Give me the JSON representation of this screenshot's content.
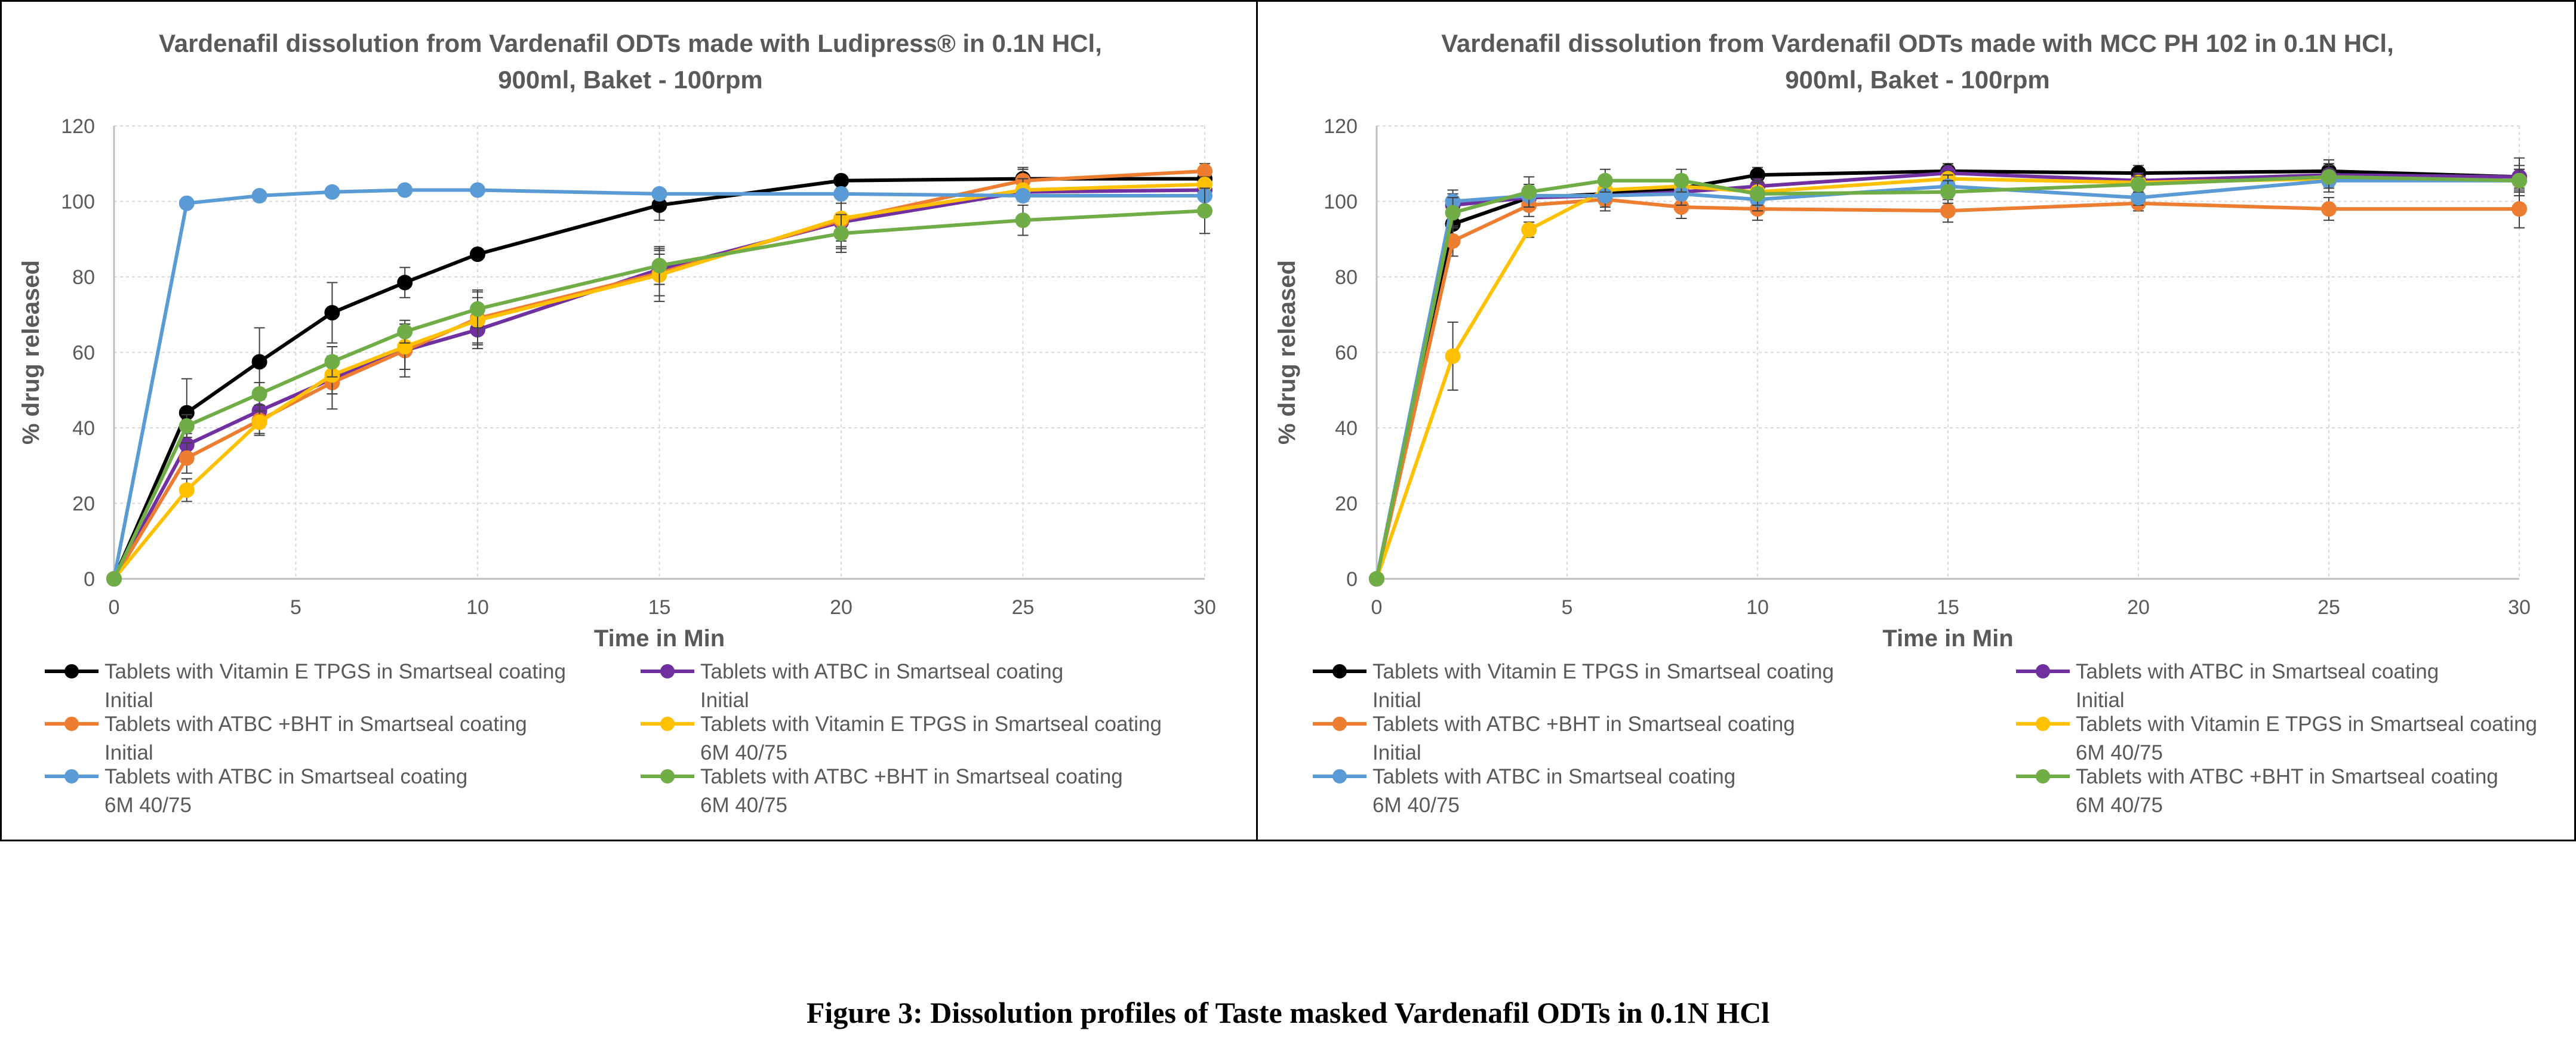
{
  "caption": "Figure 3: Dissolution profiles of Taste masked Vardenafil ODTs in 0.1N HCl",
  "chart_data": [
    {
      "type": "line",
      "title_line1": "Vardenafil dissolution from Vardenafil ODTs made with Ludipress® in 0.1N HCl,",
      "title_line2": "900ml, Baket - 100rpm",
      "xlabel": "Time in Min",
      "ylabel": "% drug released",
      "xlim": [
        0,
        30
      ],
      "ylim": [
        0,
        120
      ],
      "xticks": [
        0,
        5,
        10,
        15,
        20,
        25,
        30
      ],
      "yticks": [
        0,
        20,
        40,
        60,
        80,
        100,
        120
      ],
      "grid": true,
      "legend_position": "bottom",
      "x": [
        0,
        2,
        4,
        6,
        8,
        10,
        15,
        20,
        25,
        30
      ],
      "series": [
        {
          "name": "Tablets with Vitamin E TPGS in Smartseal coating",
          "name2": "Initial",
          "color": "#000000",
          "values": [
            0,
            44,
            57.5,
            70.5,
            78.5,
            86,
            99,
            105.5,
            106,
            106
          ],
          "errors": [
            0,
            9,
            9,
            8,
            4,
            1,
            4,
            1,
            3,
            2
          ]
        },
        {
          "name": "Tablets with ATBC in Smartseal coating",
          "name2": "Initial",
          "color": "#7030A0",
          "values": [
            0,
            35.5,
            44.5,
            53,
            60.5,
            66,
            82,
            94.5,
            102.5,
            103
          ],
          "errors": [
            0,
            3,
            3,
            4,
            5,
            5,
            4,
            5,
            2,
            2
          ]
        },
        {
          "name": "Tablets with ATBC +BHT in Smartseal coating",
          "name2": "Initial",
          "color": "#ED7D31",
          "values": [
            0,
            32,
            42,
            52,
            60.5,
            69,
            81,
            95,
            105.5,
            108
          ],
          "errors": [
            0,
            4,
            4,
            7,
            7,
            7,
            6,
            7,
            3,
            2
          ]
        },
        {
          "name": "Tablets with Vitamin E TPGS in Smartseal coating",
          "name2": "6M 40/75",
          "color": "#FFC000",
          "values": [
            0,
            23.5,
            41.5,
            54,
            61.5,
            68.5,
            80.5,
            95.5,
            103,
            104.5
          ],
          "errors": [
            0,
            3,
            3,
            5,
            6,
            6,
            7,
            8,
            3,
            2
          ]
        },
        {
          "name": "Tablets with ATBC in Smartseal coating",
          "name2": "6M 40/75",
          "color": "#5B9BD5",
          "values": [
            0,
            99.5,
            101.5,
            102.5,
            103,
            103,
            102,
            102,
            101.5,
            101.5
          ],
          "errors": [
            0,
            0,
            0,
            0,
            0,
            0,
            0,
            0,
            0,
            0
          ]
        },
        {
          "name": "Tablets with ATBC +BHT in Smartseal coating",
          "name2": "6M 40/75",
          "color": "#70AD47",
          "values": [
            0,
            40.5,
            49,
            57.5,
            65.5,
            71.5,
            83,
            91.5,
            95,
            97.5
          ],
          "errors": [
            0,
            3,
            3,
            4,
            3,
            5,
            5,
            5,
            4,
            6
          ]
        }
      ]
    },
    {
      "type": "line",
      "title_line1": "Vardenafil dissolution from Vardenafil ODTs made with MCC PH 102 in 0.1N HCl,",
      "title_line2": "900ml, Baket - 100rpm",
      "xlabel": "Time in Min",
      "ylabel": "% drug released",
      "xlim": [
        0,
        30
      ],
      "ylim": [
        0,
        120
      ],
      "xticks": [
        0,
        5,
        10,
        15,
        20,
        25,
        30
      ],
      "yticks": [
        0,
        20,
        40,
        60,
        80,
        100,
        120
      ],
      "grid": true,
      "legend_position": "bottom",
      "x": [
        0,
        2,
        4,
        6,
        8,
        10,
        15,
        20,
        25,
        30
      ],
      "series": [
        {
          "name": "Tablets with Vitamin E TPGS in Smartseal coating",
          "name2": "Initial",
          "color": "#000000",
          "values": [
            0,
            94,
            101,
            102,
            103.5,
            107,
            108,
            107.5,
            108,
            106.5
          ],
          "errors": [
            0,
            4,
            3,
            3,
            3,
            2,
            2,
            2,
            3,
            5
          ]
        },
        {
          "name": "Tablets with ATBC in Smartseal coating",
          "name2": "Initial",
          "color": "#7030A0",
          "values": [
            0,
            99,
            101,
            101.5,
            102.5,
            104,
            107.5,
            105.5,
            107,
            106.5
          ],
          "errors": [
            0,
            3,
            2,
            2,
            2,
            2,
            2,
            2,
            3,
            3
          ]
        },
        {
          "name": "Tablets with ATBC +BHT in Smartseal coating",
          "name2": "Initial",
          "color": "#ED7D31",
          "values": [
            0,
            89.5,
            99,
            100.5,
            98.5,
            98,
            97.5,
            99.5,
            98,
            98
          ],
          "errors": [
            0,
            4,
            3,
            3,
            3,
            3,
            3,
            2,
            3,
            5
          ]
        },
        {
          "name": "Tablets with Vitamin E TPGS in Smartseal coating",
          "name2": "6M 40/75",
          "color": "#FFC000",
          "values": [
            0,
            59,
            92.5,
            103,
            104,
            102.5,
            106,
            105,
            106,
            105.5
          ],
          "errors": [
            0,
            9,
            2,
            3,
            3,
            3,
            2,
            2,
            2,
            3
          ]
        },
        {
          "name": "Tablets with ATBC in Smartseal coating",
          "name2": "6M 40/75",
          "color": "#5B9BD5",
          "values": [
            0,
            100,
            101.5,
            101.5,
            102,
            100.5,
            104,
            101,
            105.5,
            105.5
          ],
          "errors": [
            0,
            3,
            3,
            3,
            3,
            3,
            3,
            2,
            3,
            3
          ]
        },
        {
          "name": "Tablets with ATBC +BHT in Smartseal coating",
          "name2": "6M 40/75",
          "color": "#70AD47",
          "values": [
            0,
            97,
            102.5,
            105.5,
            105.5,
            102,
            102.5,
            104.5,
            106.5,
            105.5
          ],
          "errors": [
            0,
            4,
            4,
            3,
            3,
            3,
            3,
            2,
            3,
            3
          ]
        }
      ]
    }
  ]
}
